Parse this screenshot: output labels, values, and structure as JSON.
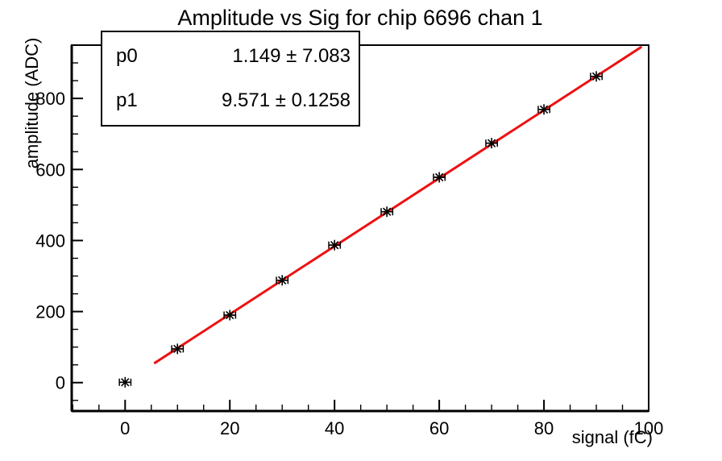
{
  "window": {
    "background": "#ffffff"
  },
  "chart_data": {
    "type": "scatter",
    "title": "Amplitude vs Sig for chip 6696 chan 1",
    "xlabel": "signal (fC)",
    "ylabel": "amplitude (ADC)",
    "xlim": [
      -10.2,
      100
    ],
    "ylim": [
      -80,
      950
    ],
    "x_major_ticks": [
      0,
      20,
      40,
      60,
      80,
      100
    ],
    "x_minor_step": 5,
    "y_major_ticks": [
      0,
      200,
      400,
      600,
      800
    ],
    "y_minor_step": 50,
    "grid": false,
    "legend": "none",
    "series": [
      {
        "name": "amplitude-vs-signal-points",
        "marker": "asterisk",
        "color": "#000000",
        "x": [
          0,
          10,
          20,
          30,
          40,
          50,
          60,
          70,
          80,
          90
        ],
        "y": [
          1,
          95,
          190,
          288,
          387,
          481,
          578,
          674,
          769,
          862
        ],
        "xerr": 1.1
      }
    ],
    "fit": {
      "name": "linear-fit-line",
      "p0": 1.149,
      "p1": 9.571,
      "x_range": [
        5.7,
        98.5
      ],
      "color": "#ee1111",
      "line_width": 3
    }
  },
  "stats_box": {
    "rows": [
      {
        "name": "p0",
        "value": "1.149 ± 7.083"
      },
      {
        "name": "p1",
        "value": "9.571 ± 0.1258"
      }
    ]
  }
}
